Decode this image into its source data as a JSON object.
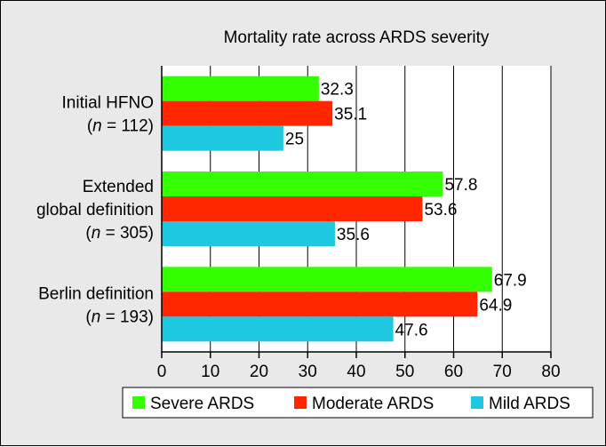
{
  "chart_data": {
    "type": "bar",
    "orientation": "horizontal",
    "title": "Mortality rate across ARDS severity",
    "categories": [
      {
        "lines": [
          "Initial HFNO"
        ],
        "n_label": "n",
        "n_value": "112"
      },
      {
        "lines": [
          "Extended",
          "global definition"
        ],
        "n_label": "n",
        "n_value": "305"
      },
      {
        "lines": [
          "Berlin definition"
        ],
        "n_label": "n",
        "n_value": "193"
      }
    ],
    "series": [
      {
        "name": "Severe ARDS",
        "color": "#33ff00",
        "values": [
          32.3,
          57.8,
          67.9
        ],
        "labels": [
          "32.3",
          "57.8",
          "67.9"
        ]
      },
      {
        "name": "Moderate ARDS",
        "color": "#ff2600",
        "values": [
          35.1,
          53.6,
          64.9
        ],
        "labels": [
          "35.1",
          "53.6",
          "64.9"
        ]
      },
      {
        "name": "Mild ARDS",
        "color": "#1ec8e0",
        "values": [
          25,
          35.6,
          47.6
        ],
        "labels": [
          "25",
          "35.6",
          "47.6"
        ]
      }
    ],
    "xlim": [
      0,
      80
    ],
    "xticks": [
      "0",
      "10",
      "20",
      "30",
      "40",
      "50",
      "60",
      "70",
      "80"
    ],
    "grid": true,
    "legend_position": "bottom"
  }
}
